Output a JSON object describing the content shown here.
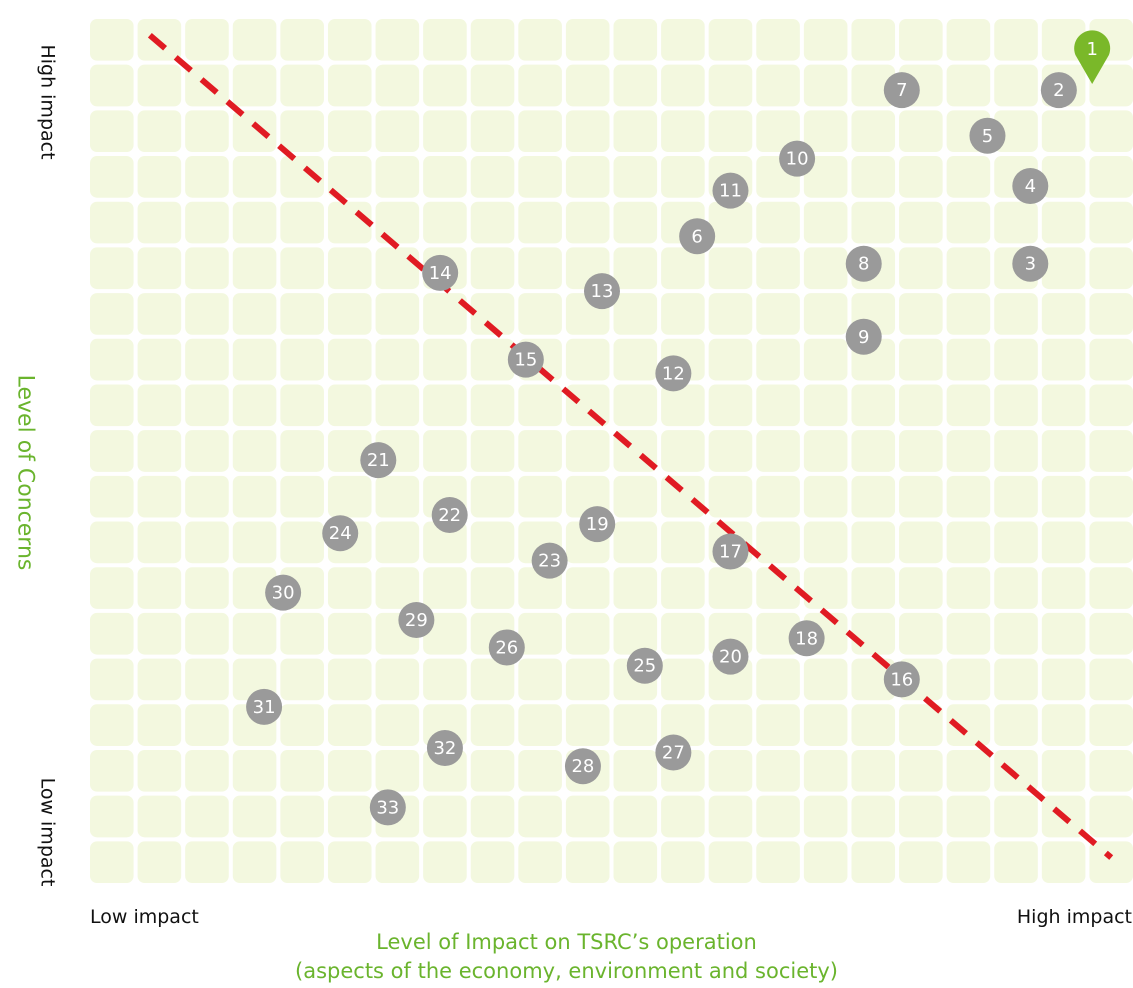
{
  "chart_data": {
    "type": "scatter",
    "title": "",
    "xlabel": "Level of Impact on TSRC’s operation",
    "xlabel_sub": "(aspects of the economy, environment and society)",
    "ylabel": "Level of Concerns",
    "x_low_label": "Low impact",
    "x_high_label": "High impact",
    "y_high_label": "High impact",
    "y_low_label": "Low impact",
    "xlim": [
      0,
      22
    ],
    "ylim": [
      0,
      19
    ],
    "grid": true,
    "grid_color": "#f3f8df",
    "marker_color": "#9a9a9a",
    "highlight_color": "#7ab829",
    "threshold_line_color": "#e01b23",
    "threshold_line": [
      [
        1.3,
        18.6
      ],
      [
        21.5,
        0.6
      ]
    ],
    "points": [
      {
        "label": "1",
        "x": 21.1,
        "y": 18.3,
        "highlight": true
      },
      {
        "label": "2",
        "x": 20.4,
        "y": 17.4
      },
      {
        "label": "3",
        "x": 19.8,
        "y": 13.6
      },
      {
        "label": "4",
        "x": 19.8,
        "y": 15.3
      },
      {
        "label": "5",
        "x": 18.9,
        "y": 16.4
      },
      {
        "label": "6",
        "x": 12.8,
        "y": 14.2
      },
      {
        "label": "7",
        "x": 17.1,
        "y": 17.4
      },
      {
        "label": "8",
        "x": 16.3,
        "y": 13.6
      },
      {
        "label": "9",
        "x": 16.3,
        "y": 12.0
      },
      {
        "label": "10",
        "x": 14.9,
        "y": 15.9
      },
      {
        "label": "11",
        "x": 13.5,
        "y": 15.2
      },
      {
        "label": "12",
        "x": 12.3,
        "y": 11.2
      },
      {
        "label": "13",
        "x": 10.8,
        "y": 13.0
      },
      {
        "label": "14",
        "x": 7.4,
        "y": 13.4
      },
      {
        "label": "15",
        "x": 9.2,
        "y": 11.5
      },
      {
        "label": "16",
        "x": 17.1,
        "y": 4.5
      },
      {
        "label": "17",
        "x": 13.5,
        "y": 7.3
      },
      {
        "label": "18",
        "x": 15.1,
        "y": 5.4
      },
      {
        "label": "19",
        "x": 10.7,
        "y": 7.9
      },
      {
        "label": "20",
        "x": 13.5,
        "y": 5.0
      },
      {
        "label": "21",
        "x": 6.1,
        "y": 9.3
      },
      {
        "label": "22",
        "x": 7.6,
        "y": 8.1
      },
      {
        "label": "23",
        "x": 9.7,
        "y": 7.1
      },
      {
        "label": "24",
        "x": 5.3,
        "y": 7.7
      },
      {
        "label": "25",
        "x": 11.7,
        "y": 4.8
      },
      {
        "label": "26",
        "x": 8.8,
        "y": 5.2
      },
      {
        "label": "27",
        "x": 12.3,
        "y": 2.9
      },
      {
        "label": "28",
        "x": 10.4,
        "y": 2.6
      },
      {
        "label": "29",
        "x": 6.9,
        "y": 5.8
      },
      {
        "label": "30",
        "x": 4.1,
        "y": 6.4
      },
      {
        "label": "31",
        "x": 3.7,
        "y": 3.9
      },
      {
        "label": "32",
        "x": 7.5,
        "y": 3.0
      },
      {
        "label": "33",
        "x": 6.3,
        "y": 1.7
      }
    ]
  }
}
